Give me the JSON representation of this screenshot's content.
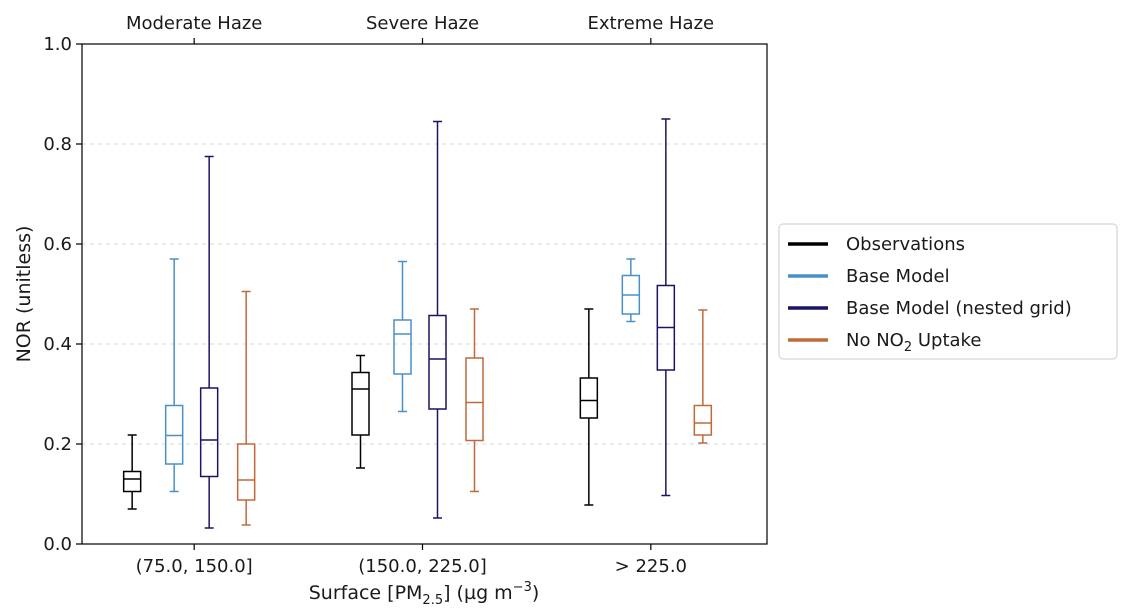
{
  "chart_data": {
    "type": "box",
    "xlabel": "Surface [PM",
    "xlabel_sub": "2.5",
    "xlabel_unit": "] (µg m",
    "xlabel_sup": "−3",
    "xlabel_end": ")",
    "ylabel": "NOR (unitless)",
    "ylim": [
      0.0,
      1.0
    ],
    "yticks": [
      "0.0",
      "0.2",
      "0.4",
      "0.6",
      "0.8",
      "1.0"
    ],
    "grid": "horizontal dashed",
    "legend_position": "right",
    "categories": [
      "(75.0, 150.0]",
      "(150.0, 225.0]",
      "> 225.0"
    ],
    "top_labels": [
      "Moderate Haze",
      "Severe Haze",
      "Extreme Haze"
    ],
    "series": [
      {
        "name": "Observations",
        "color": "#000000",
        "boxes": [
          {
            "min": 0.07,
            "q1": 0.105,
            "median": 0.13,
            "q3": 0.145,
            "max": 0.218
          },
          {
            "min": 0.152,
            "q1": 0.218,
            "median": 0.31,
            "q3": 0.343,
            "max": 0.377
          },
          {
            "min": 0.078,
            "q1": 0.252,
            "median": 0.287,
            "q3": 0.332,
            "max": 0.47
          }
        ]
      },
      {
        "name": "Base Model",
        "color": "#4a90c8",
        "boxes": [
          {
            "min": 0.105,
            "q1": 0.16,
            "median": 0.217,
            "q3": 0.277,
            "max": 0.57
          },
          {
            "min": 0.265,
            "q1": 0.34,
            "median": 0.42,
            "q3": 0.448,
            "max": 0.565
          },
          {
            "min": 0.445,
            "q1": 0.46,
            "median": 0.498,
            "q3": 0.537,
            "max": 0.57
          }
        ]
      },
      {
        "name": "Base Model (nested grid)",
        "color": "#1a1464",
        "boxes": [
          {
            "min": 0.032,
            "q1": 0.135,
            "median": 0.208,
            "q3": 0.312,
            "max": 0.775
          },
          {
            "min": 0.052,
            "q1": 0.27,
            "median": 0.37,
            "q3": 0.457,
            "max": 0.845
          },
          {
            "min": 0.097,
            "q1": 0.348,
            "median": 0.433,
            "q3": 0.517,
            "max": 0.85
          }
        ]
      },
      {
        "name": "No NO",
        "name_sub": "2",
        "name_end": " Uptake",
        "color": "#c06a3a",
        "boxes": [
          {
            "min": 0.038,
            "q1": 0.088,
            "median": 0.128,
            "q3": 0.2,
            "max": 0.505
          },
          {
            "min": 0.105,
            "q1": 0.207,
            "median": 0.283,
            "q3": 0.372,
            "max": 0.47
          },
          {
            "min": 0.202,
            "q1": 0.218,
            "median": 0.242,
            "q3": 0.277,
            "max": 0.468
          }
        ]
      }
    ]
  }
}
